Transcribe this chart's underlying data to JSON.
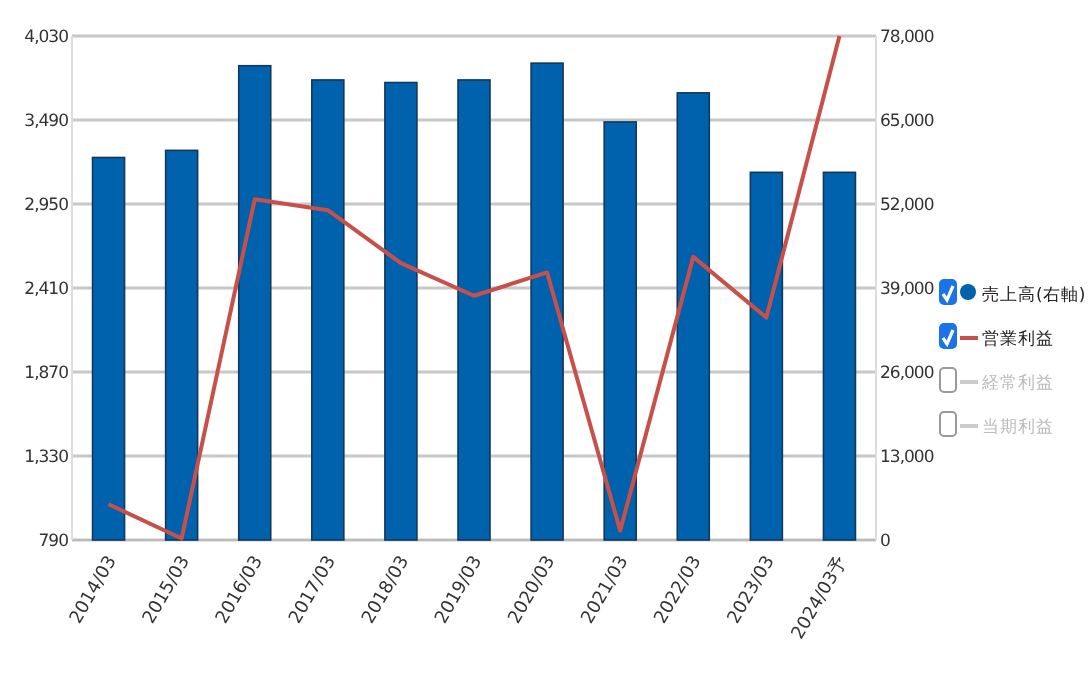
{
  "chart_data": {
    "type": "bar",
    "categories": [
      "2014/03",
      "2015/03",
      "2016/03",
      "2017/03",
      "2018/03",
      "2019/03",
      "2020/03",
      "2021/03",
      "2022/03",
      "2023/03",
      "2024/03予"
    ],
    "series": [
      {
        "name": "売上高(右軸)",
        "axis": "y2",
        "color": "#0062ad",
        "values": [
          59200,
          60300,
          73400,
          71200,
          70800,
          71200,
          73800,
          64700,
          69200,
          56900,
          56900
        ]
      },
      {
        "name": "営業利益",
        "type": "line",
        "color": "#c8504b",
        "values": [
          1020,
          800,
          2980,
          2910,
          2570,
          2360,
          2510,
          850,
          2610,
          2220,
          4030
        ]
      },
      {
        "name": "経常利益",
        "type": "line",
        "color": "#cccccc",
        "values": [
          null,
          null,
          null,
          null,
          null,
          null,
          null,
          null,
          null,
          null,
          null
        ]
      },
      {
        "name": "当期利益",
        "type": "line",
        "color": "#cccccc",
        "values": [
          null,
          null,
          null,
          null,
          null,
          null,
          null,
          null,
          null,
          null,
          null
        ]
      }
    ],
    "ylim": [
      790,
      4030
    ],
    "yticks": [
      {
        "value": 790,
        "label": "790"
      },
      {
        "value": 1330,
        "label": "1,330"
      },
      {
        "value": 1870,
        "label": "1,870"
      },
      {
        "value": 2410,
        "label": "2,410"
      },
      {
        "value": 2950,
        "label": "2,950"
      },
      {
        "value": 3490,
        "label": "3,490"
      },
      {
        "value": 4030,
        "label": "4,030"
      }
    ],
    "y2lim": [
      0,
      78000
    ],
    "y2ticks": [
      0,
      {
        "value": 13000,
        "label": "13,000"
      },
      {
        "value": 26000,
        "label": "26,000"
      },
      {
        "value": 39000,
        "label": "39,000"
      },
      {
        "value": 52000,
        "label": "52,000"
      },
      {
        "value": 65000,
        "label": "65,000"
      },
      {
        "value": 78000,
        "label": "78,000"
      }
    ],
    "grid": "y",
    "legend": "right",
    "marker": "none",
    "line_style": "solid"
  }
}
